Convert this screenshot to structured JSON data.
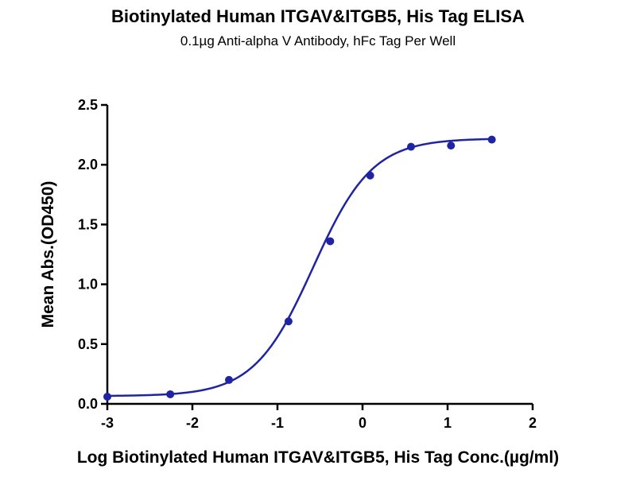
{
  "chart_data": {
    "type": "scatter",
    "title": "Biotinylated Human ITGAV&ITGB5, His Tag ELISA",
    "subtitle": "0.1µg Anti-alpha V Antibody, hFc Tag Per Well",
    "xlabel": "Log Biotinylated Human ITGAV&ITGB5, His Tag Conc.(µg/ml)",
    "ylabel": "Mean Abs.(OD450)",
    "xlim": [
      -3,
      2
    ],
    "ylim": [
      0,
      2.5
    ],
    "x_ticks": [
      -3,
      -2,
      -1,
      0,
      1,
      2
    ],
    "x_tick_labels": [
      "-3",
      "-2",
      "-1",
      "0",
      "1",
      "2"
    ],
    "y_ticks": [
      0,
      0.5,
      1.0,
      1.5,
      2.0,
      2.5
    ],
    "y_tick_labels": [
      "0.0",
      "0.5",
      "1.0",
      "1.5",
      "2.0",
      "2.5"
    ],
    "grid": false,
    "legend": "none",
    "color": "#1f24a3",
    "series": [
      {
        "points": [
          {
            "x": -3.0,
            "y": 0.06
          },
          {
            "x": -2.26,
            "y": 0.08
          },
          {
            "x": -1.57,
            "y": 0.2
          },
          {
            "x": -0.87,
            "y": 0.69
          },
          {
            "x": -0.38,
            "y": 1.36
          },
          {
            "x": 0.09,
            "y": 1.91
          },
          {
            "x": 0.57,
            "y": 2.15
          },
          {
            "x": 1.04,
            "y": 2.16
          },
          {
            "x": 1.52,
            "y": 2.21
          }
        ],
        "fit": {
          "model": "4PL",
          "bottom": 0.065,
          "top": 2.22,
          "log_ec50": -0.58,
          "hill_slope": 1.25
        }
      }
    ]
  }
}
